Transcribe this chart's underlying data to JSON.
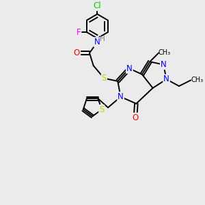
{
  "bg_color": "#ebebeb",
  "bond_color": "#000000",
  "atom_colors": {
    "N": "#0000ff",
    "O": "#ff0000",
    "S": "#cccc00",
    "Cl": "#00cc00",
    "F": "#ff00ff",
    "H": "#808080",
    "C": "#000000"
  },
  "font_size": 8.5,
  "line_width": 1.4,
  "figsize": [
    3.0,
    3.0
  ],
  "dpi": 100,
  "xlim": [
    0,
    10
  ],
  "ylim": [
    0,
    10
  ]
}
